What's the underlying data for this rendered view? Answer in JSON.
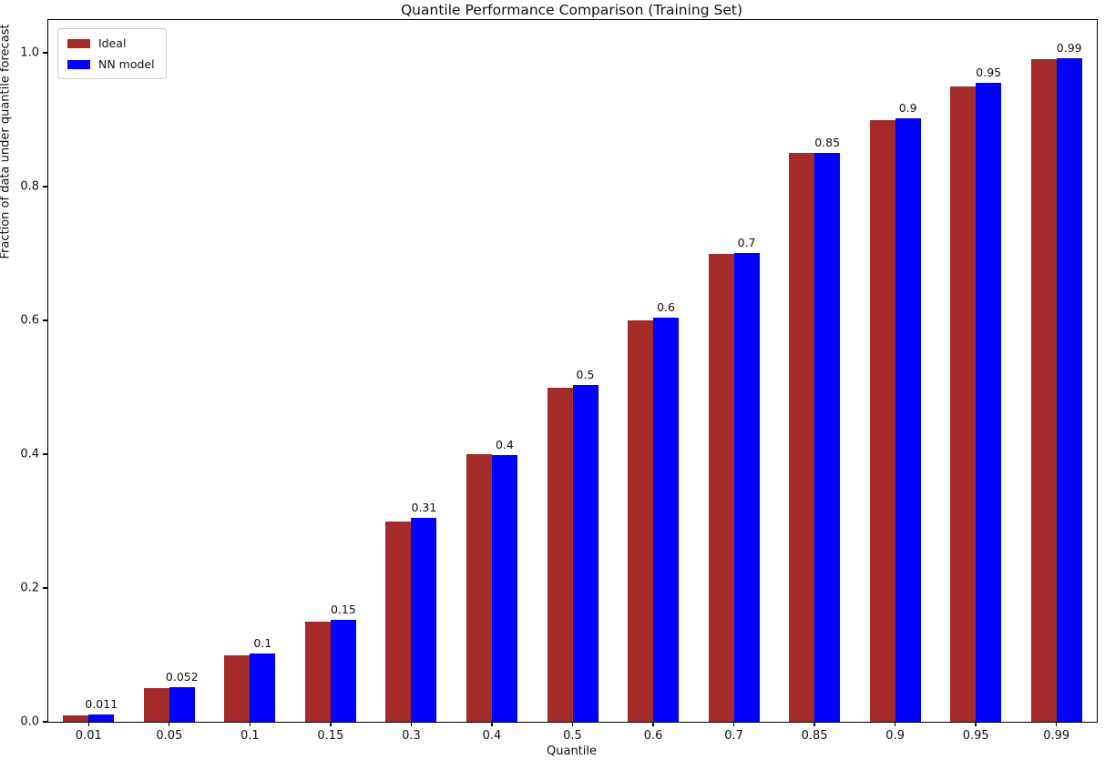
{
  "chart_data": {
    "type": "bar",
    "title": "Quantile Performance Comparison (Training Set)",
    "xlabel": "Quantile",
    "ylabel": "Fraction of data under quantile forecast",
    "categories": [
      "0.01",
      "0.05",
      "0.1",
      "0.15",
      "0.3",
      "0.4",
      "0.5",
      "0.6",
      "0.7",
      "0.85",
      "0.9",
      "0.95",
      "0.99"
    ],
    "series": [
      {
        "name": "Ideal",
        "color": "#A52A2A",
        "values": [
          0.01,
          0.05,
          0.1,
          0.15,
          0.3,
          0.4,
          0.5,
          0.6,
          0.7,
          0.85,
          0.9,
          0.95,
          0.99
        ]
      },
      {
        "name": "NN model",
        "color": "#0000FF",
        "values": [
          0.011,
          0.052,
          0.102,
          0.152,
          0.305,
          0.398,
          0.503,
          0.604,
          0.701,
          0.851,
          0.902,
          0.955,
          0.992
        ]
      }
    ],
    "bar_labels": [
      "0.011",
      "0.052",
      "0.1",
      "0.15",
      "0.31",
      "0.4",
      "0.5",
      "0.6",
      "0.7",
      "0.85",
      "0.9",
      "0.95",
      "0.99"
    ],
    "yticks": [
      0.0,
      0.2,
      0.4,
      0.6,
      0.8,
      1.0
    ],
    "ytick_labels": [
      "0.0",
      "0.2",
      "0.4",
      "0.6",
      "0.8",
      "1.0"
    ],
    "ylim": [
      0,
      1.049
    ],
    "grid": false,
    "legend_position": "upper left"
  }
}
